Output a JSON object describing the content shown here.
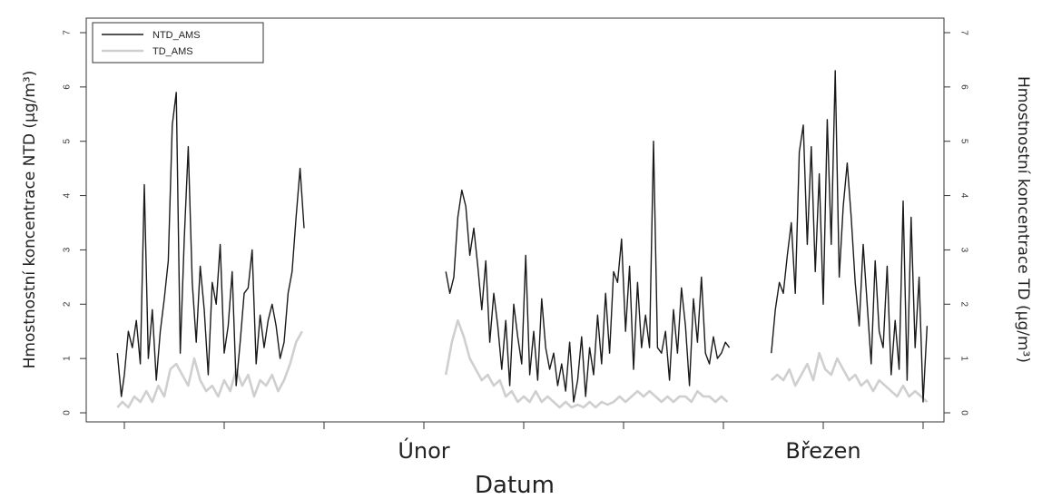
{
  "chart_data": {
    "type": "line",
    "title": "",
    "xlabel": "Datum",
    "ylabel_left": "Hmostnostní koncentrace NTD (µg/m³)",
    "ylabel_right": "Hmostnostní koncentrace TD (µg/m³)",
    "ylim": [
      0,
      7
    ],
    "yticks": [
      0,
      1,
      2,
      3,
      4,
      5,
      6,
      7
    ],
    "x_unit": "day",
    "xlim": [
      -0.4,
      80.4
    ],
    "month_labels": [
      {
        "label": "Únor",
        "x": 30
      },
      {
        "label": "Březen",
        "x": 70
      }
    ],
    "x_ticks": [
      0,
      10,
      20,
      30,
      40,
      50,
      60,
      70,
      80
    ],
    "grid": false,
    "legend": {
      "position": "top-left",
      "entries": [
        "NTD_AMS",
        "TD_AMS"
      ]
    },
    "colors": {
      "NTD_AMS": "#1a1a1a",
      "TD_AMS": "#cfcfcf"
    },
    "series": [
      {
        "name": "NTD_AMS",
        "segments": [
          {
            "x": [
              -0.7,
              -0.3,
              0,
              0.4,
              0.8,
              1.2,
              1.6,
              2.0,
              2.4,
              2.8,
              3.2,
              3.6,
              4.0,
              4.4,
              4.8,
              5.2,
              5.6,
              6.0,
              6.4,
              6.8,
              7.2,
              7.6,
              8.0,
              8.4,
              8.8,
              9.2,
              9.6,
              10.0,
              10.4,
              10.8,
              11.2,
              11.6,
              12.0,
              12.4,
              12.8,
              13.2,
              13.6,
              14.0,
              14.4,
              14.8,
              15.2,
              15.6,
              16.0,
              16.4,
              16.8,
              17.2,
              17.6,
              18.0
            ],
            "y": [
              1.1,
              0.3,
              0.7,
              1.5,
              1.2,
              1.7,
              0.9,
              4.2,
              1.0,
              1.9,
              0.6,
              1.5,
              2.1,
              2.8,
              5.3,
              5.9,
              1.1,
              3.2,
              4.9,
              2.4,
              1.3,
              2.7,
              1.9,
              0.7,
              2.4,
              2.0,
              3.1,
              1.1,
              1.6,
              2.6,
              0.5,
              1.3,
              2.2,
              2.3,
              3.0,
              0.9,
              1.8,
              1.2,
              1.7,
              2.0,
              1.6,
              1.0,
              1.3,
              2.2,
              2.6,
              3.6,
              4.5,
              3.4
            ]
          },
          {
            "x": [
              32.2,
              32.6,
              33.0,
              33.4,
              33.8,
              34.2,
              34.6,
              35.0,
              35.4,
              35.8,
              36.2,
              36.6,
              37.0,
              37.4,
              37.8,
              38.2,
              38.6,
              39.0,
              39.4,
              39.8,
              40.2,
              40.6,
              41.0,
              41.4,
              41.8,
              42.2,
              42.6,
              43.0,
              43.4,
              43.8,
              44.2,
              44.6,
              45.0,
              45.4,
              45.8,
              46.2,
              46.6,
              47.0,
              47.4,
              47.8,
              48.2,
              48.6,
              49.0,
              49.4,
              49.8,
              50.2,
              50.6,
              51.0,
              51.4,
              51.8,
              52.2,
              52.6,
              53.0,
              53.4,
              53.8,
              54.2,
              54.6,
              55.0,
              55.4,
              55.8,
              56.2,
              56.6,
              57.0,
              57.4,
              57.8,
              58.2,
              58.6,
              59.0,
              59.4,
              59.8,
              60.2,
              60.6
            ],
            "y": [
              2.6,
              2.2,
              2.5,
              3.6,
              4.1,
              3.8,
              2.9,
              3.4,
              2.7,
              1.9,
              2.8,
              1.3,
              2.2,
              1.6,
              0.8,
              1.7,
              0.5,
              2.0,
              1.4,
              0.9,
              2.9,
              0.7,
              1.5,
              0.6,
              2.1,
              1.2,
              0.8,
              1.1,
              0.5,
              0.9,
              0.4,
              1.3,
              0.2,
              0.6,
              1.4,
              0.3,
              1.2,
              0.7,
              1.8,
              0.9,
              2.2,
              1.1,
              2.6,
              2.4,
              3.2,
              1.5,
              2.7,
              0.8,
              2.4,
              1.2,
              1.8,
              1.2,
              5.0,
              1.2,
              1.1,
              1.5,
              0.6,
              1.9,
              1.1,
              2.3,
              1.6,
              0.5,
              2.1,
              1.3,
              2.5,
              1.1,
              0.9,
              1.4,
              1.0,
              1.1,
              1.3,
              1.2
            ]
          },
          {
            "x": [
              64.8,
              65.2,
              65.6,
              66.0,
              66.4,
              66.8,
              67.2,
              67.6,
              68.0,
              68.4,
              68.8,
              69.2,
              69.6,
              70.0,
              70.4,
              70.8,
              71.2,
              71.6,
              72.0,
              72.4,
              72.8,
              73.2,
              73.6,
              74.0,
              74.4,
              74.8,
              75.2,
              75.6,
              76.0,
              76.4,
              76.8,
              77.2,
              77.6,
              78.0,
              78.4,
              78.8,
              79.2,
              79.6,
              80.0,
              80.4
            ],
            "y": [
              1.1,
              1.9,
              2.4,
              2.2,
              2.9,
              3.5,
              2.2,
              4.8,
              5.3,
              3.1,
              4.9,
              2.6,
              4.4,
              2.0,
              5.4,
              3.1,
              6.3,
              2.5,
              3.8,
              4.6,
              3.6,
              2.4,
              1.6,
              3.1,
              2.0,
              0.9,
              2.8,
              1.5,
              1.2,
              2.7,
              0.7,
              1.7,
              0.8,
              3.9,
              0.6,
              3.6,
              1.2,
              2.5,
              0.2,
              1.6
            ]
          }
        ]
      },
      {
        "name": "TD_AMS",
        "segments": [
          {
            "x": [
              -0.7,
              -0.2,
              0.4,
              1.0,
              1.6,
              2.2,
              2.8,
              3.4,
              4.0,
              4.6,
              5.2,
              5.8,
              6.4,
              7.0,
              7.6,
              8.2,
              8.8,
              9.4,
              10.0,
              10.6,
              11.2,
              11.8,
              12.4,
              13.0,
              13.6,
              14.2,
              14.8,
              15.4,
              16.0,
              16.6,
              17.2,
              17.8
            ],
            "y": [
              0.1,
              0.2,
              0.1,
              0.3,
              0.2,
              0.4,
              0.2,
              0.5,
              0.3,
              0.8,
              0.9,
              0.7,
              0.5,
              1.0,
              0.6,
              0.4,
              0.5,
              0.3,
              0.6,
              0.4,
              0.8,
              0.5,
              0.7,
              0.3,
              0.6,
              0.5,
              0.7,
              0.4,
              0.6,
              0.9,
              1.3,
              1.5
            ]
          },
          {
            "x": [
              32.2,
              32.8,
              33.4,
              34.0,
              34.6,
              35.2,
              35.8,
              36.4,
              37.0,
              37.6,
              38.2,
              38.8,
              39.4,
              40.0,
              40.6,
              41.2,
              41.8,
              42.4,
              43.0,
              43.6,
              44.2,
              44.8,
              45.4,
              46.0,
              46.6,
              47.2,
              47.8,
              48.4,
              49.0,
              49.6,
              50.2,
              50.8,
              51.4,
              52.0,
              52.6,
              53.2,
              53.8,
              54.4,
              55.0,
              55.6,
              56.2,
              56.8,
              57.4,
              58.0,
              58.6,
              59.2,
              59.8,
              60.4
            ],
            "y": [
              0.7,
              1.3,
              1.7,
              1.4,
              1.0,
              0.8,
              0.6,
              0.7,
              0.5,
              0.6,
              0.3,
              0.4,
              0.2,
              0.3,
              0.2,
              0.4,
              0.2,
              0.3,
              0.2,
              0.1,
              0.2,
              0.1,
              0.15,
              0.1,
              0.2,
              0.1,
              0.2,
              0.15,
              0.2,
              0.3,
              0.2,
              0.3,
              0.4,
              0.3,
              0.4,
              0.3,
              0.2,
              0.3,
              0.2,
              0.3,
              0.3,
              0.2,
              0.4,
              0.3,
              0.3,
              0.2,
              0.3,
              0.2
            ]
          },
          {
            "x": [
              64.8,
              65.4,
              66.0,
              66.6,
              67.2,
              67.8,
              68.4,
              69.0,
              69.6,
              70.2,
              70.8,
              71.4,
              72.0,
              72.6,
              73.2,
              73.8,
              74.4,
              75.0,
              75.6,
              76.2,
              76.8,
              77.4,
              78.0,
              78.6,
              79.2,
              79.8,
              80.4
            ],
            "y": [
              0.6,
              0.7,
              0.6,
              0.8,
              0.5,
              0.7,
              0.9,
              0.6,
              1.1,
              0.8,
              0.7,
              1.0,
              0.8,
              0.6,
              0.7,
              0.5,
              0.6,
              0.4,
              0.6,
              0.5,
              0.4,
              0.3,
              0.5,
              0.3,
              0.4,
              0.3,
              0.2
            ]
          }
        ]
      }
    ]
  }
}
